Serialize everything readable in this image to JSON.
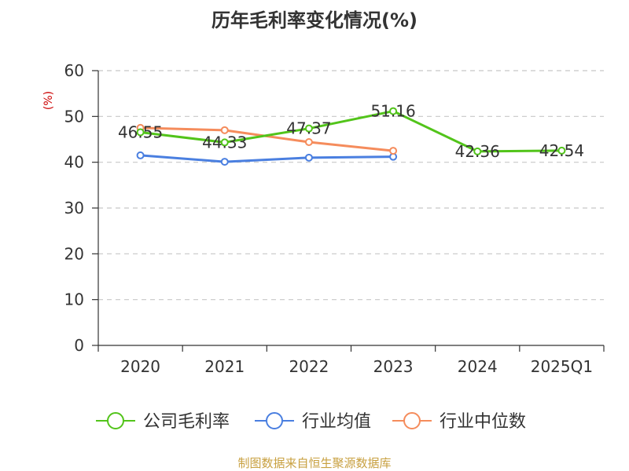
{
  "chart_data": {
    "type": "line",
    "title": "历年毛利率变化情况(%)",
    "ylabel": "(%)",
    "ylim": [
      0,
      60
    ],
    "yticks": [
      0,
      10,
      20,
      30,
      40,
      50,
      60
    ],
    "categories": [
      "2020",
      "2021",
      "2022",
      "2023",
      "2024",
      "2025Q1"
    ],
    "series": [
      {
        "name": "公司毛利率",
        "color": "#52c41a",
        "values": [
          46.55,
          44.33,
          47.37,
          51.16,
          42.36,
          42.54
        ],
        "labels": [
          "46.55",
          "44.33",
          "47.37",
          "51.16",
          "42.36",
          "42.54"
        ]
      },
      {
        "name": "行业均值",
        "color": "#4a7fe0",
        "values": [
          41.5,
          40.1,
          41.0,
          41.2,
          null,
          null
        ]
      },
      {
        "name": "行业中位数",
        "color": "#f58c5c",
        "values": [
          47.5,
          47.0,
          44.4,
          42.5,
          null,
          null
        ]
      }
    ],
    "grid": true,
    "legend": "bottom"
  },
  "footer": {
    "source": "制图数据来自恒生聚源数据库",
    "source_color": "#c8a040"
  },
  "colors": {
    "ylabel": "#cc0000",
    "axis": "#333333",
    "grid": "#c8c8c8"
  }
}
